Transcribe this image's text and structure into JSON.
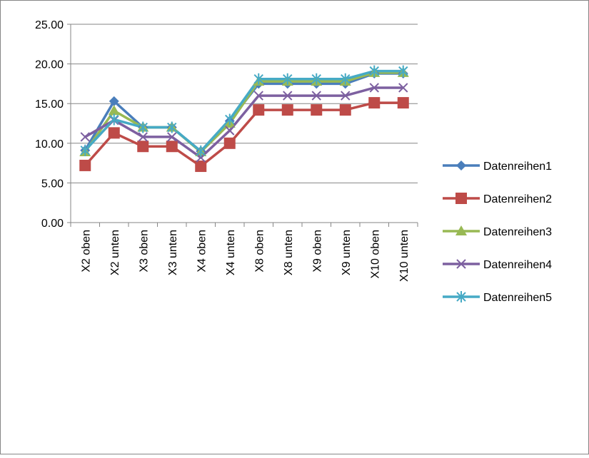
{
  "chart_data": {
    "type": "line",
    "categories": [
      "X2 oben",
      "X2 unten",
      "X3 oben",
      "X3 unten",
      "X4 oben",
      "X4 unten",
      "X8 oben",
      "X8 unten",
      "X9 oben",
      "X9 unten",
      "X10 oben",
      "X10 unten"
    ],
    "series": [
      {
        "name": "Datenreihen1",
        "color": "#4a7ebb",
        "marker": "diamond",
        "values": [
          9.1,
          15.3,
          12.0,
          12.0,
          9.0,
          12.8,
          17.5,
          17.5,
          17.5,
          17.5,
          18.8,
          18.8
        ]
      },
      {
        "name": "Datenreihen2",
        "color": "#be4b48",
        "marker": "square",
        "values": [
          7.2,
          11.3,
          9.6,
          9.6,
          7.1,
          10.0,
          14.2,
          14.2,
          14.2,
          14.2,
          15.1,
          15.1
        ]
      },
      {
        "name": "Datenreihen3",
        "color": "#98b954",
        "marker": "triangle",
        "values": [
          8.9,
          14.1,
          12.0,
          12.0,
          8.9,
          12.5,
          17.8,
          17.8,
          17.8,
          17.8,
          18.9,
          18.9
        ]
      },
      {
        "name": "Datenreihen4",
        "color": "#7d60a0",
        "marker": "x",
        "values": [
          10.8,
          12.9,
          10.8,
          10.8,
          8.2,
          11.6,
          16.0,
          16.0,
          16.0,
          16.0,
          17.0,
          17.0
        ]
      },
      {
        "name": "Datenreihen5",
        "color": "#46aac5",
        "marker": "star",
        "values": [
          9.1,
          13.0,
          12.0,
          12.0,
          9.0,
          13.0,
          18.1,
          18.1,
          18.1,
          18.1,
          19.1,
          19.1
        ]
      }
    ],
    "ylim": [
      0,
      25
    ],
    "yticks": [
      {
        "value": 0,
        "label": "0.00"
      },
      {
        "value": 5,
        "label": "5.00"
      },
      {
        "value": 10,
        "label": "10.00"
      },
      {
        "value": 15,
        "label": "15.00"
      },
      {
        "value": 20,
        "label": "20.00"
      },
      {
        "value": 25,
        "label": "25.00"
      }
    ],
    "grid": true,
    "legend": "right"
  }
}
